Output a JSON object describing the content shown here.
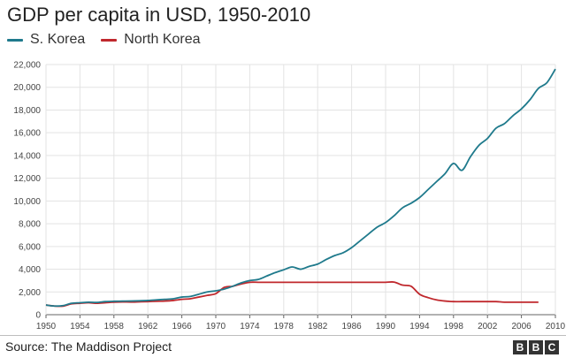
{
  "title": "GDP per capita in USD, 1950-2010",
  "legend": [
    {
      "name": "S. Korea",
      "color": "#1f7a8c"
    },
    {
      "name": "North Korea",
      "color": "#c0282d"
    }
  ],
  "source": "Source: The Maddison Project",
  "logo": {
    "letters": [
      "B",
      "B",
      "C"
    ]
  },
  "chart_data": {
    "type": "line",
    "title": "GDP per capita in USD, 1950-2010",
    "xlabel": "",
    "ylabel": "",
    "xlim": [
      1950,
      2010
    ],
    "ylim": [
      0,
      22000
    ],
    "grid": true,
    "legend_position": "top-left",
    "x_ticks": [
      "1950",
      "1954",
      "1958",
      "1962",
      "1966",
      "1970",
      "1974",
      "1978",
      "1982",
      "1986",
      "1990",
      "1994",
      "1998",
      "2002",
      "2006",
      "2010"
    ],
    "y_ticks": [
      "0",
      "2,000",
      "4,000",
      "6,000",
      "8,000",
      "10,000",
      "12,000",
      "14,000",
      "16,000",
      "18,000",
      "20,000",
      "22,000"
    ],
    "series": [
      {
        "name": "S. Korea",
        "color": "#1f7a8c",
        "x": [
          1950,
          1951,
          1952,
          1953,
          1954,
          1955,
          1956,
          1957,
          1958,
          1959,
          1960,
          1961,
          1962,
          1963,
          1964,
          1965,
          1966,
          1967,
          1968,
          1969,
          1970,
          1971,
          1972,
          1973,
          1974,
          1975,
          1976,
          1977,
          1978,
          1979,
          1980,
          1981,
          1982,
          1983,
          1984,
          1985,
          1986,
          1987,
          1988,
          1989,
          1990,
          1991,
          1992,
          1993,
          1994,
          1995,
          1996,
          1997,
          1998,
          1999,
          2000,
          2001,
          2002,
          2003,
          2004,
          2005,
          2006,
          2007,
          2008,
          2009,
          2010
        ],
        "y": [
          850,
          760,
          800,
          1000,
          1050,
          1100,
          1080,
          1150,
          1180,
          1190,
          1200,
          1220,
          1250,
          1300,
          1350,
          1400,
          1550,
          1600,
          1800,
          2000,
          2100,
          2250,
          2500,
          2800,
          3000,
          3100,
          3400,
          3700,
          3950,
          4200,
          4000,
          4250,
          4450,
          4850,
          5200,
          5450,
          5900,
          6500,
          7100,
          7700,
          8100,
          8700,
          9400,
          9800,
          10300,
          11000,
          11700,
          12400,
          13300,
          12700,
          13900,
          14900,
          15500,
          16400,
          16800,
          17500,
          18100,
          18900,
          19900,
          20400,
          21600
        ]
      },
      {
        "name": "North Korea",
        "color": "#c0282d",
        "x": [
          1950,
          1951,
          1952,
          1953,
          1954,
          1955,
          1956,
          1957,
          1958,
          1959,
          1960,
          1961,
          1962,
          1963,
          1964,
          1965,
          1966,
          1967,
          1968,
          1969,
          1970,
          1971,
          1972,
          1973,
          1974,
          1975,
          1976,
          1977,
          1978,
          1979,
          1980,
          1981,
          1982,
          1983,
          1984,
          1985,
          1986,
          1987,
          1988,
          1989,
          1990,
          1991,
          1992,
          1993,
          1994,
          1995,
          1996,
          1997,
          1998,
          1999,
          2000,
          2001,
          2002,
          2003,
          2004,
          2005,
          2006,
          2007,
          2008
        ],
        "y": [
          850,
          760,
          750,
          950,
          1000,
          1050,
          1000,
          1050,
          1100,
          1120,
          1110,
          1130,
          1150,
          1180,
          1200,
          1250,
          1350,
          1400,
          1550,
          1700,
          1850,
          2400,
          2500,
          2700,
          2850,
          2850,
          2850,
          2850,
          2850,
          2850,
          2850,
          2850,
          2850,
          2850,
          2850,
          2850,
          2850,
          2850,
          2850,
          2850,
          2850,
          2870,
          2600,
          2500,
          1800,
          1500,
          1300,
          1200,
          1150,
          1150,
          1150,
          1150,
          1150,
          1150,
          1100,
          1100,
          1100,
          1100,
          1100
        ]
      }
    ]
  }
}
